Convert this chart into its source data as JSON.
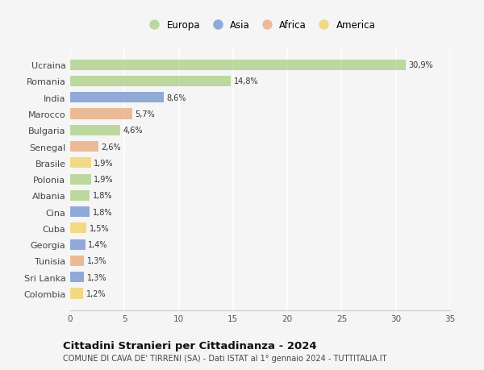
{
  "countries": [
    "Ucraina",
    "Romania",
    "India",
    "Marocco",
    "Bulgaria",
    "Senegal",
    "Brasile",
    "Polonia",
    "Albania",
    "Cina",
    "Cuba",
    "Georgia",
    "Tunisia",
    "Sri Lanka",
    "Colombia"
  ],
  "values": [
    30.9,
    14.8,
    8.6,
    5.7,
    4.6,
    2.6,
    1.9,
    1.9,
    1.8,
    1.8,
    1.5,
    1.4,
    1.3,
    1.3,
    1.2
  ],
  "labels": [
    "30,9%",
    "14,8%",
    "8,6%",
    "5,7%",
    "4,6%",
    "2,6%",
    "1,9%",
    "1,9%",
    "1,8%",
    "1,8%",
    "1,5%",
    "1,4%",
    "1,3%",
    "1,3%",
    "1,2%"
  ],
  "continents": [
    "Europa",
    "Europa",
    "Asia",
    "Africa",
    "Europa",
    "Africa",
    "America",
    "Europa",
    "Europa",
    "Asia",
    "America",
    "Asia",
    "Africa",
    "Asia",
    "America"
  ],
  "colors": {
    "Europa": "#aacf82",
    "Asia": "#7090cc",
    "Africa": "#e8a878",
    "America": "#f0d060"
  },
  "xlim": [
    0,
    35
  ],
  "xticks": [
    0,
    5,
    10,
    15,
    20,
    25,
    30,
    35
  ],
  "title": "Cittadini Stranieri per Cittadinanza - 2024",
  "subtitle": "COMUNE DI CAVA DE' TIRRENI (SA) - Dati ISTAT al 1° gennaio 2024 - TUTTITALIA.IT",
  "background_color": "#f5f5f5",
  "grid_color": "#ffffff",
  "bar_height": 0.65,
  "alpha": 0.75
}
